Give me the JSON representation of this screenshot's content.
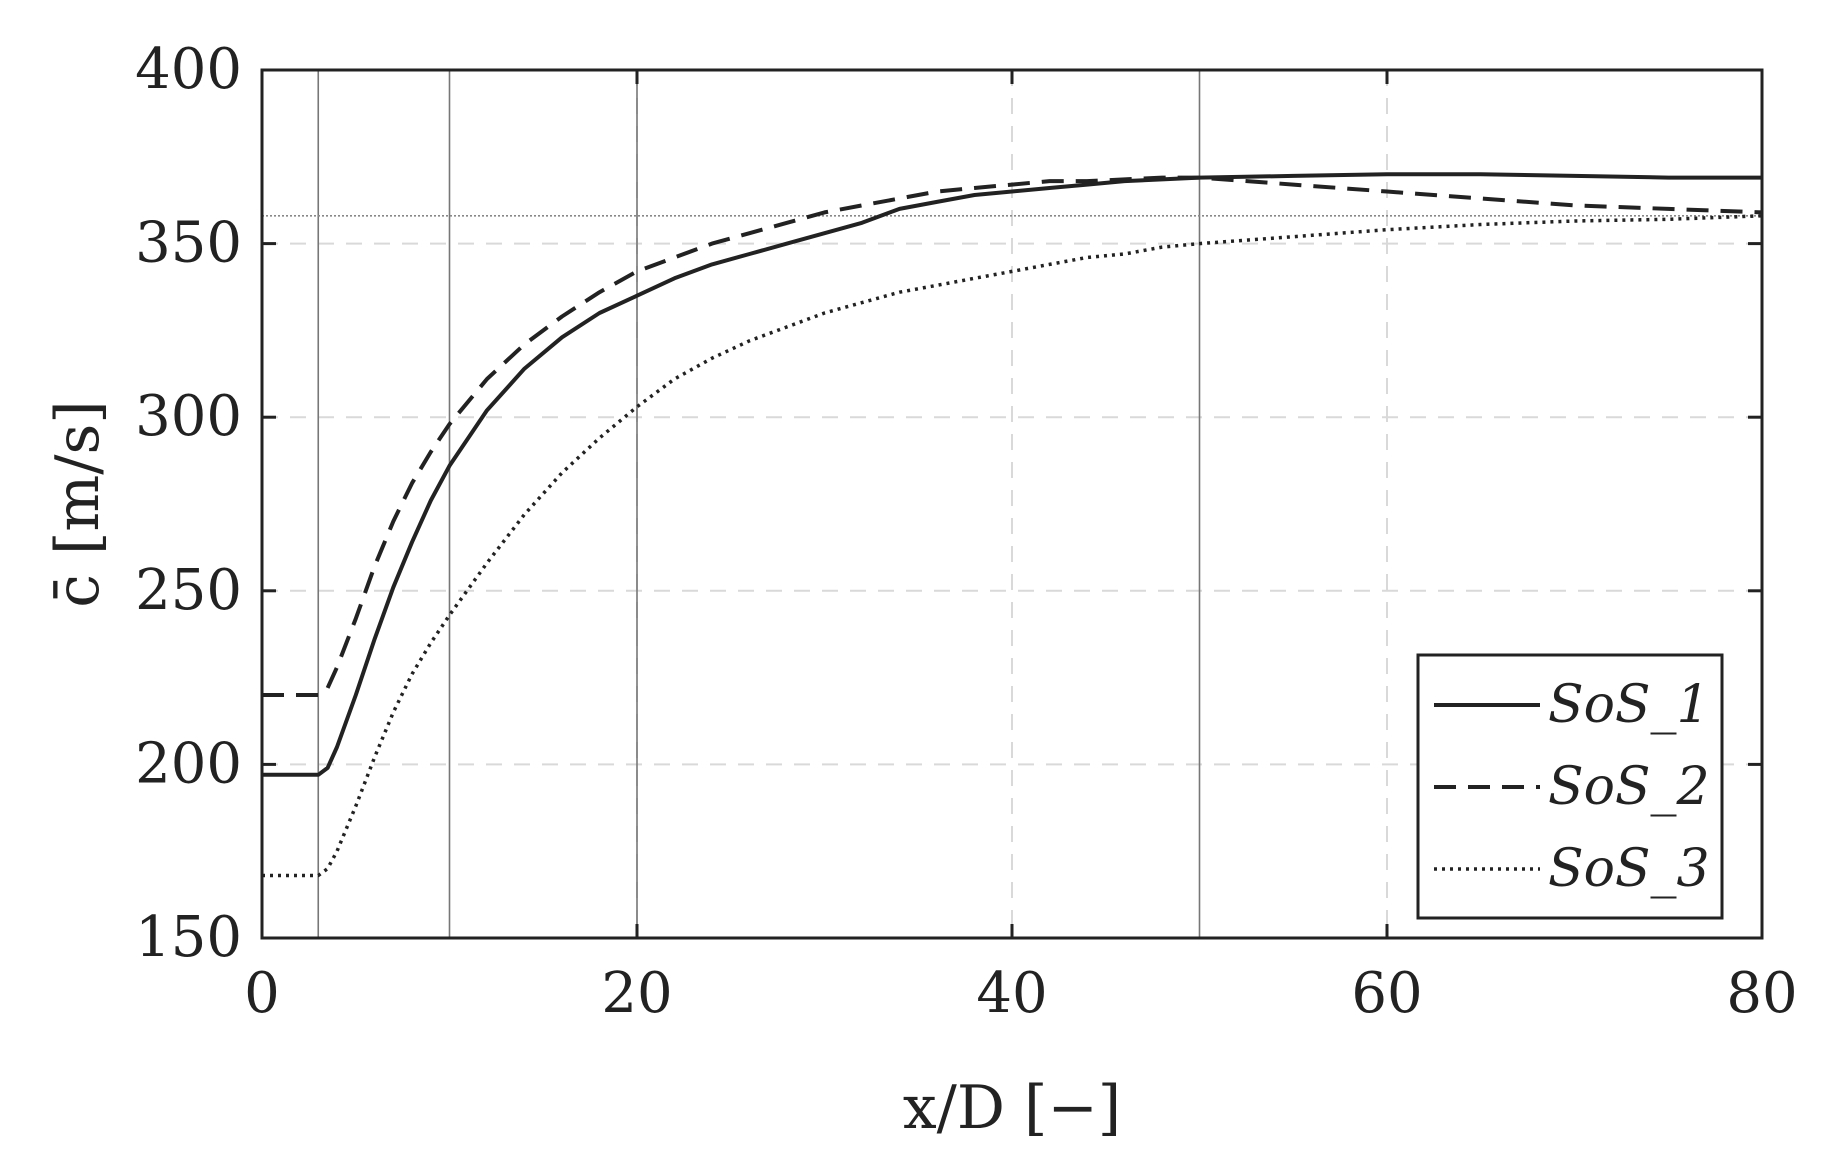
{
  "chart_data": {
    "type": "line",
    "xlabel": "x/D [−]",
    "ylabel": "c̄ [m/s]",
    "xlim": [
      0,
      80
    ],
    "ylim": [
      150,
      400
    ],
    "xticks": [
      0,
      20,
      40,
      60,
      80
    ],
    "yticks": [
      150,
      200,
      250,
      300,
      350,
      400
    ],
    "grid": "dashed",
    "legend_position": "bottom-right",
    "reference_hline": 358,
    "reference_vlines": [
      3,
      10,
      20,
      50
    ],
    "series": [
      {
        "name": "SoS_1",
        "style": "solid",
        "x": [
          0,
          2,
          3,
          3.5,
          4,
          5,
          6,
          7,
          8,
          9,
          10,
          12,
          14,
          16,
          18,
          20,
          22,
          24,
          26,
          28,
          30,
          32,
          34,
          36,
          38,
          40,
          42,
          44,
          46,
          48,
          50,
          55,
          60,
          65,
          70,
          75,
          80
        ],
        "y": [
          197,
          197,
          197,
          199,
          205,
          220,
          236,
          251,
          264,
          276,
          286,
          302,
          314,
          323,
          330,
          335,
          340,
          344,
          347,
          350,
          353,
          356,
          360,
          362,
          364,
          365,
          366,
          367,
          368,
          368.5,
          369,
          369.5,
          370,
          370,
          369.5,
          369,
          369
        ]
      },
      {
        "name": "SoS_2",
        "style": "dashed",
        "x": [
          0,
          2,
          3,
          3.5,
          4,
          5,
          6,
          7,
          8,
          9,
          10,
          12,
          14,
          16,
          18,
          20,
          22,
          24,
          26,
          28,
          30,
          32,
          34,
          36,
          38,
          40,
          42,
          44,
          46,
          48,
          50,
          55,
          60,
          65,
          70,
          75,
          80
        ],
        "y": [
          220,
          220,
          220,
          222,
          228,
          242,
          257,
          270,
          281,
          290,
          298,
          311,
          321,
          329,
          336,
          342,
          346,
          350,
          353,
          356,
          359,
          361,
          363,
          365,
          366,
          367,
          368,
          368,
          368.5,
          369,
          369,
          367,
          365,
          363,
          361,
          360,
          359
        ]
      },
      {
        "name": "SoS_3",
        "style": "dotted",
        "x": [
          0,
          2,
          3,
          3.5,
          4,
          5,
          6,
          7,
          8,
          9,
          10,
          12,
          14,
          16,
          18,
          20,
          22,
          24,
          26,
          28,
          30,
          32,
          34,
          36,
          38,
          40,
          42,
          44,
          46,
          48,
          50,
          55,
          60,
          65,
          70,
          75,
          80
        ],
        "y": [
          168,
          168,
          168,
          170,
          175,
          188,
          202,
          215,
          226,
          235,
          243,
          258,
          272,
          284,
          294,
          303,
          311,
          317,
          322,
          326,
          330,
          333,
          336,
          338,
          340,
          342,
          344,
          346,
          347,
          349,
          350,
          352,
          354,
          355.5,
          356.5,
          357,
          358
        ]
      }
    ]
  }
}
